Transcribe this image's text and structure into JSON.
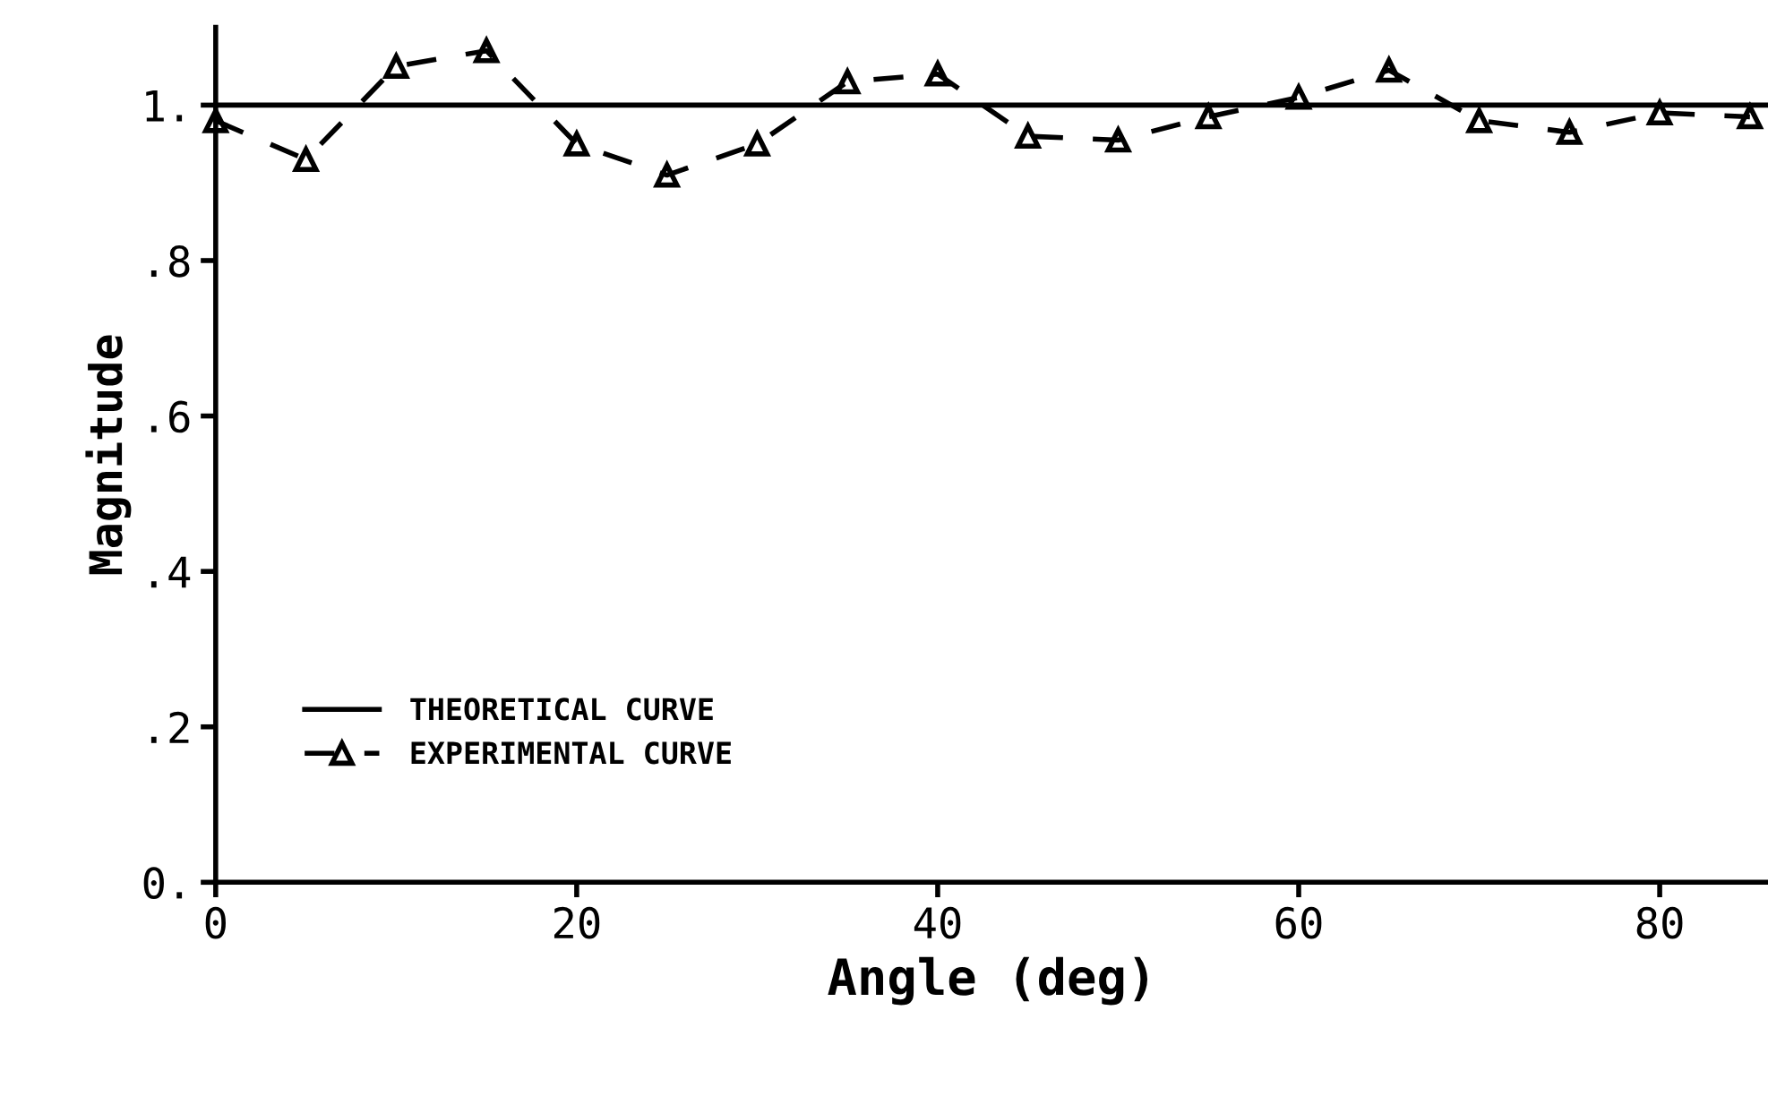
{
  "chart_data": {
    "type": "line",
    "xlabel": "Angle (deg)",
    "ylabel": "Magnitude",
    "xlim": [
      0,
      86
    ],
    "ylim": [
      0,
      1.1
    ],
    "xticks": [
      0,
      20,
      40,
      60,
      80
    ],
    "yticks": [
      {
        "value": 0,
        "label": "0."
      },
      {
        "value": 0.2,
        "label": ".2"
      },
      {
        "value": 0.4,
        "label": ".4"
      },
      {
        "value": 0.6,
        "label": ".6"
      },
      {
        "value": 0.8,
        "label": ".8"
      },
      {
        "value": 1.0,
        "label": "1."
      }
    ],
    "grid": false,
    "legend": "bottom left",
    "series": [
      {
        "name": "THEORETICAL CURVE",
        "color": "#000000",
        "x": [
          0,
          86
        ],
        "values": [
          1.0,
          1.0
        ],
        "marker": "none",
        "line_style": "solid"
      },
      {
        "name": "EXPERIMENTAL CURVE",
        "color": "#000000",
        "x": [
          0,
          5,
          10,
          15,
          20,
          25,
          30,
          35,
          40,
          45,
          50,
          55,
          60,
          65,
          70,
          75,
          80,
          85
        ],
        "values": [
          0.98,
          0.93,
          1.05,
          1.07,
          0.95,
          0.91,
          0.95,
          1.03,
          1.04,
          0.96,
          0.955,
          0.985,
          1.01,
          1.045,
          0.98,
          0.965,
          0.99,
          0.985
        ],
        "marker": "triangle",
        "line_style": "dashed"
      }
    ]
  }
}
